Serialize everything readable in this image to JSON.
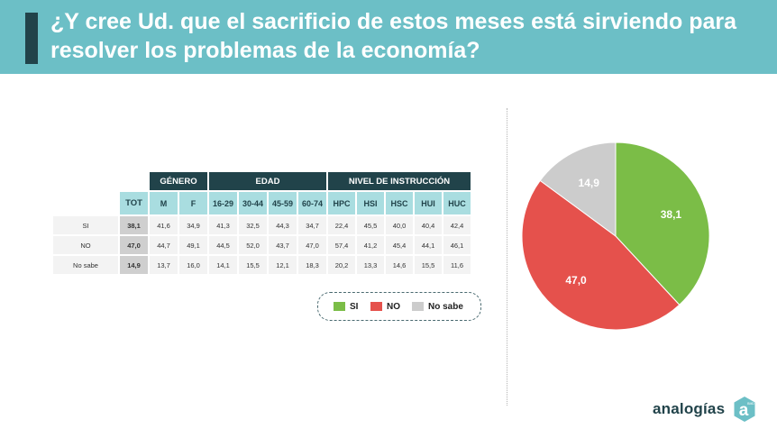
{
  "header": {
    "title": "¿Y cree Ud. que el sacrificio de estos meses está sirviendo para resolver los problemas de la economía?"
  },
  "table": {
    "groups": {
      "genero": "GÉNERO",
      "edad": "EDAD",
      "nivel": "NIVEL DE INSTRUCCIÓN"
    },
    "columns": [
      "TOT",
      "M",
      "F",
      "16-29",
      "30-44",
      "45-59",
      "60-74",
      "HPC",
      "HSI",
      "HSC",
      "HUI",
      "HUC"
    ],
    "rows": [
      {
        "label": "SI",
        "values": [
          "38,1",
          "41,6",
          "34,9",
          "41,3",
          "32,5",
          "44,3",
          "34,7",
          "22,4",
          "45,5",
          "40,0",
          "40,4",
          "42,4"
        ]
      },
      {
        "label": "NO",
        "values": [
          "47,0",
          "44,7",
          "49,1",
          "44,5",
          "52,0",
          "43,7",
          "47,0",
          "57,4",
          "41,2",
          "45,4",
          "44,1",
          "46,1"
        ]
      },
      {
        "label": "No sabe",
        "values": [
          "14,9",
          "13,7",
          "16,0",
          "14,1",
          "15,5",
          "12,1",
          "18,3",
          "20,2",
          "13,3",
          "14,6",
          "15,5",
          "11,6"
        ]
      }
    ]
  },
  "legend": {
    "items": [
      {
        "label": "SI",
        "color": "#7bbd47"
      },
      {
        "label": "NO",
        "color": "#e5514c"
      },
      {
        "label": "No sabe",
        "color": "#cccccc"
      }
    ]
  },
  "chart_data": {
    "type": "pie",
    "slices": [
      {
        "label": "SI",
        "value": 38.1,
        "value_label": "38,1",
        "color": "#7bbd47"
      },
      {
        "label": "NO",
        "value": 47.0,
        "value_label": "47,0",
        "color": "#e5514c"
      },
      {
        "label": "No sabe",
        "value": 14.9,
        "value_label": "14,9",
        "color": "#cccccc"
      }
    ],
    "start": "top",
    "direction": "clockwise",
    "legend_position": "below-table"
  },
  "brand": {
    "name": "analogías",
    "badge_letter": "a",
    "badge_mark": "BMD",
    "color": "#21434a",
    "accent": "#6cbfc6"
  }
}
